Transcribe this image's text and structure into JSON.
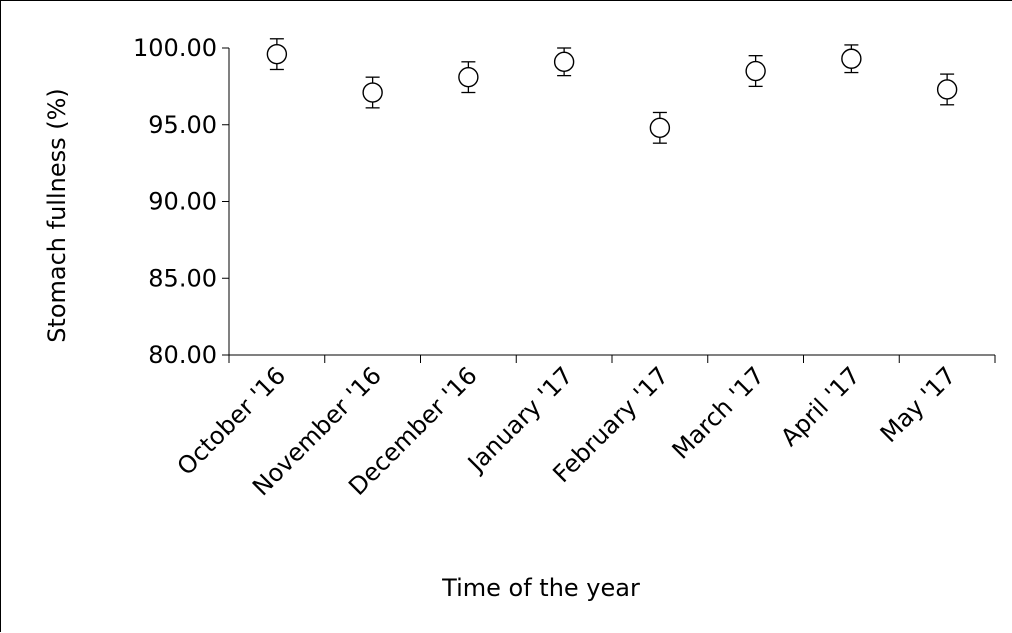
{
  "chart_data": {
    "type": "scatter",
    "title": "",
    "xlabel": "Time of the year",
    "ylabel": "Stomach fullness  (%)",
    "categories": [
      "October '16",
      "November '16",
      "December '16",
      "January '17",
      "February '17",
      "March '17",
      "April '17",
      "May '17"
    ],
    "y_tick_labels": [
      "80.00",
      "85.00",
      "90.00",
      "95.00",
      "100.00"
    ],
    "ylim": [
      80,
      100
    ],
    "series": [
      {
        "values": [
          99.6,
          97.1,
          98.1,
          99.1,
          94.8,
          98.5,
          99.3,
          97.3
        ],
        "error": [
          1.0,
          1.0,
          1.0,
          0.9,
          1.0,
          1.0,
          0.9,
          1.0
        ]
      }
    ],
    "grid": false,
    "legend": "none",
    "marker": "open-circle"
  }
}
